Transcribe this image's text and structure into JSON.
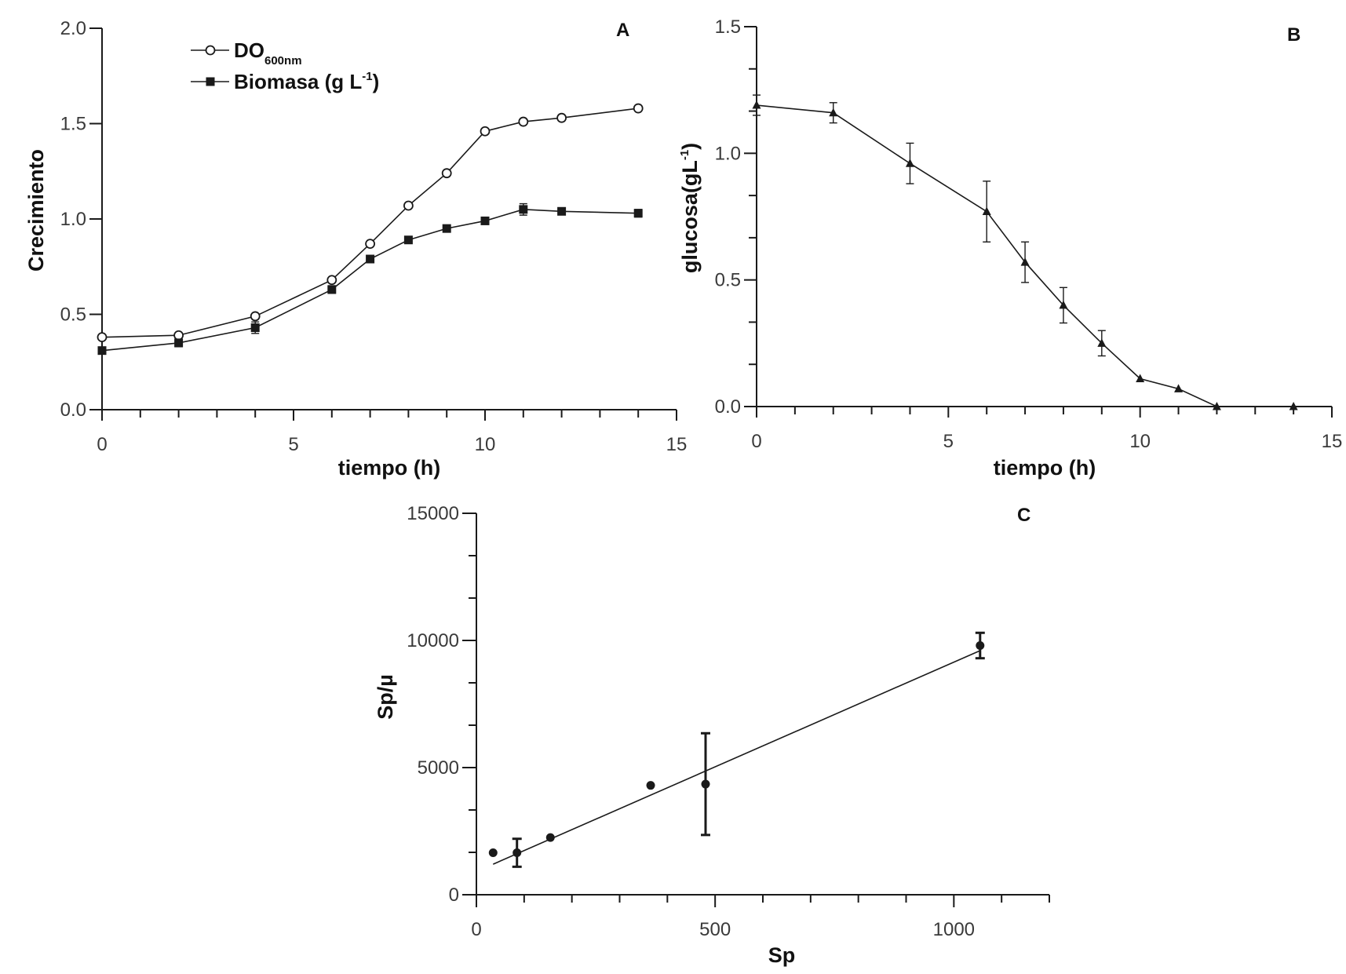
{
  "chart_data": [
    {
      "panel": "A",
      "type": "line",
      "xlabel": "tiempo (h)",
      "ylabel": "Crecimiento",
      "xlim": [
        0,
        15
      ],
      "ylim": [
        0,
        2.0
      ],
      "xticks": [
        0,
        5,
        10,
        15
      ],
      "yticks": [
        0.0,
        0.5,
        1.0,
        1.5,
        2.0
      ],
      "ytick_labels": [
        "0.0",
        "0.5",
        "1.0",
        "1.5",
        "2.0"
      ],
      "legend_position": "top-left",
      "series": [
        {
          "name": "DO",
          "name_sub": "600nm",
          "marker": "open-circle",
          "x": [
            0,
            2,
            4,
            6,
            7,
            8,
            9,
            10,
            11,
            12,
            14
          ],
          "y": [
            0.38,
            0.39,
            0.49,
            0.68,
            0.87,
            1.07,
            1.24,
            1.46,
            1.51,
            1.53,
            1.58
          ],
          "err": [
            0,
            0,
            0,
            0,
            0,
            0,
            0,
            0,
            0,
            0,
            0
          ]
        },
        {
          "name": "Biomasa (g L",
          "name_sup": "-1",
          "name_end": ")",
          "marker": "filled-square",
          "x": [
            0,
            2,
            4,
            6,
            7,
            8,
            9,
            10,
            11,
            12,
            14
          ],
          "y": [
            0.31,
            0.35,
            0.43,
            0.63,
            0.79,
            0.89,
            0.95,
            0.99,
            1.05,
            1.04,
            1.03
          ],
          "err": [
            0.01,
            0.02,
            0.03,
            0.02,
            0,
            0,
            0,
            0,
            0.03,
            0,
            0.02
          ]
        }
      ]
    },
    {
      "panel": "B",
      "type": "line",
      "xlabel": "tiempo (h)",
      "ylabel": "glucosa(gL",
      "ylabel_sup": "-1",
      "ylabel_end": ")",
      "xlim": [
        0,
        15
      ],
      "ylim": [
        0,
        1.5
      ],
      "xticks": [
        0,
        5,
        10,
        15
      ],
      "yticks": [
        0.0,
        0.5,
        1.0,
        1.5
      ],
      "ytick_labels": [
        "0.0",
        "0.5",
        "1.0",
        "1.5"
      ],
      "series": [
        {
          "name": "glucosa",
          "marker": "filled-triangle",
          "x": [
            0,
            2,
            4,
            6,
            7,
            8,
            9,
            10,
            11,
            12,
            14
          ],
          "y": [
            1.19,
            1.16,
            0.96,
            0.77,
            0.57,
            0.4,
            0.25,
            0.11,
            0.07,
            0.0,
            0.0
          ],
          "err": [
            0.04,
            0.04,
            0.08,
            0.12,
            0.08,
            0.07,
            0.05,
            0,
            0,
            0,
            0
          ]
        }
      ]
    },
    {
      "panel": "C",
      "type": "scatter",
      "xlabel": "Sp",
      "ylabel": "Sp/µ",
      "xlim": [
        0,
        1200
      ],
      "ylim": [
        0,
        15000
      ],
      "xticks": [
        0,
        500,
        1000
      ],
      "yticks": [
        0,
        5000,
        10000,
        15000
      ],
      "ytick_labels": [
        "0",
        "5000",
        "10000",
        "15000"
      ],
      "points": {
        "x": [
          35,
          85,
          155,
          365,
          480,
          1055
        ],
        "y": [
          1650,
          1650,
          2250,
          4300,
          4350,
          9800
        ],
        "err": [
          0,
          550,
          0,
          0,
          2000,
          500
        ]
      },
      "fit_line": {
        "x": [
          35,
          1055
        ],
        "y": [
          1200,
          9600
        ]
      }
    }
  ]
}
